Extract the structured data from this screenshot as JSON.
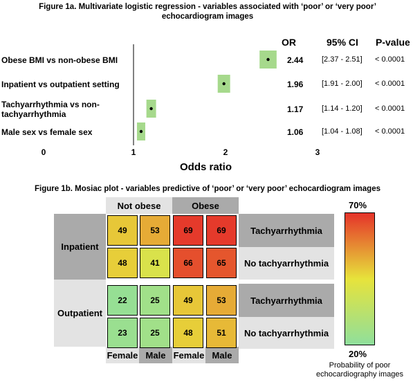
{
  "chart_data": [
    {
      "type": "forest",
      "title": "Figure 1a. Multivariate logistic regression - variables associated with ‘poor’ or ‘very poor’ echocardiogram images",
      "xlabel": "Odds ratio",
      "xlim": [
        0,
        3.4
      ],
      "xticks": [
        "0",
        "1",
        "2",
        "3"
      ],
      "reference_line": 1,
      "column_headers": {
        "or": "OR",
        "ci": "95% CI",
        "p": "P-value"
      },
      "rows": [
        {
          "label": "Obese BMI vs non-obese BMI",
          "or": 2.44,
          "or_text": "2.44",
          "ci_low": 2.37,
          "ci_high": 2.51,
          "ci_text": "[2.37 - 2.51]",
          "p_text": "< 0.0001"
        },
        {
          "label": "Inpatient vs outpatient setting",
          "or": 1.96,
          "or_text": "1.96",
          "ci_low": 1.91,
          "ci_high": 2.0,
          "ci_text": "[1.91 - 2.00]",
          "p_text": "< 0.0001"
        },
        {
          "label_lines": [
            "Tachyarrhythmia vs non-",
            "tachyarrhythmia"
          ],
          "or": 1.17,
          "or_text": "1.17",
          "ci_low": 1.14,
          "ci_high": 1.2,
          "ci_text": "[1.14 - 1.20]",
          "p_text": "< 0.0001"
        },
        {
          "label": "Male sex vs female sex",
          "or": 1.06,
          "or_text": "1.06",
          "ci_low": 1.04,
          "ci_high": 1.08,
          "ci_text": "[1.04 - 1.08]",
          "p_text": "< 0.0001"
        }
      ]
    },
    {
      "type": "heatmap",
      "title": "Figure 1b. Mosiac plot - variables predictive of ‘poor’ or ‘very poor’ echocardiogram images",
      "obesity_labels": [
        "Not obese",
        "Obese"
      ],
      "sex_labels": [
        "Female",
        "Male",
        "Female",
        "Male"
      ],
      "setting_labels": [
        "Inpatient",
        "Outpatient"
      ],
      "rhythm_labels": [
        "Tachyarrhythmia",
        "No tachyarrhythmia",
        "Tachyarrhythmia",
        "No tachyarrhythmia"
      ],
      "values": [
        [
          49,
          53,
          69,
          69
        ],
        [
          48,
          41,
          66,
          65
        ],
        [
          22,
          25,
          49,
          53
        ],
        [
          23,
          25,
          48,
          51
        ]
      ],
      "colorscale": {
        "min": 20,
        "max": 70,
        "min_label": "20%",
        "max_label": "70%",
        "colors": [
          "#8fdf9c",
          "#e7e33b",
          "#e5332a"
        ]
      },
      "legend_caption": [
        "Probability of poor",
        "echocardiography images"
      ]
    }
  ]
}
